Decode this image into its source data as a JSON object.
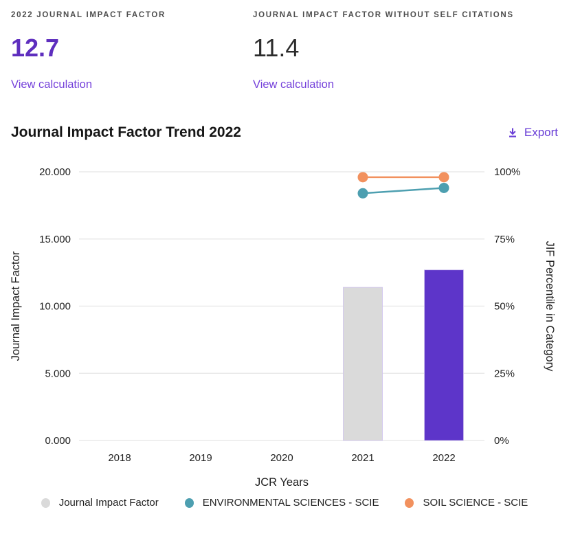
{
  "metrics": [
    {
      "label": "2022 JOURNAL IMPACT FACTOR",
      "value": "12.7",
      "link": "View calculation"
    },
    {
      "label": "JOURNAL IMPACT FACTOR WITHOUT SELF CITATIONS",
      "value": "11.4",
      "link": "View calculation"
    }
  ],
  "section": {
    "title": "Journal Impact Factor Trend 2022",
    "export_label": "Export"
  },
  "colors": {
    "accent_purple": "#5E2EBE",
    "link_purple": "#7440DA",
    "bar_gray": "#DADADA",
    "bar_purple": "#5D35C9",
    "teal": "#4D9FB0",
    "orange": "#F2915E",
    "gridline": "#EAEAEA"
  },
  "chart_data": {
    "type": "combo",
    "title": "Journal Impact Factor Trend 2022",
    "x": [
      2018,
      2019,
      2020,
      2021,
      2022
    ],
    "xlabel": "JCR Years",
    "grid": true,
    "legend_position": "bottom",
    "left_axis": {
      "label": "Journal Impact Factor",
      "range": [
        0,
        20
      ],
      "ticks": [
        0,
        5,
        10,
        15,
        20
      ],
      "tick_labels": [
        "0.000",
        "5.000",
        "10.000",
        "15.000",
        "20.000"
      ]
    },
    "right_axis": {
      "label": "JIF Percentile in Category",
      "range": [
        0,
        100
      ],
      "ticks": [
        0,
        25,
        50,
        75,
        100
      ],
      "tick_labels": [
        "0%",
        "25%",
        "50%",
        "75%",
        "100%"
      ]
    },
    "series": [
      {
        "name": "Journal Impact Factor",
        "type": "bar",
        "axis": "left",
        "values": [
          null,
          null,
          null,
          11.4,
          12.7
        ],
        "colors": [
          null,
          null,
          null,
          "#DADADA",
          "#5D35C9"
        ]
      },
      {
        "name": "ENVIRONMENTAL SCIENCES - SCIE",
        "type": "line",
        "axis": "right",
        "color": "#4D9FB0",
        "values": [
          null,
          null,
          null,
          92,
          94
        ]
      },
      {
        "name": "SOIL SCIENCE - SCIE",
        "type": "line",
        "axis": "right",
        "color": "#F2915E",
        "values": [
          null,
          null,
          null,
          98,
          98
        ]
      }
    ],
    "legend": [
      {
        "label": "Journal Impact Factor",
        "color": "#DADADA"
      },
      {
        "label": "ENVIRONMENTAL SCIENCES - SCIE",
        "color": "#4D9FB0"
      },
      {
        "label": "SOIL SCIENCE - SCIE",
        "color": "#F2915E"
      }
    ]
  }
}
